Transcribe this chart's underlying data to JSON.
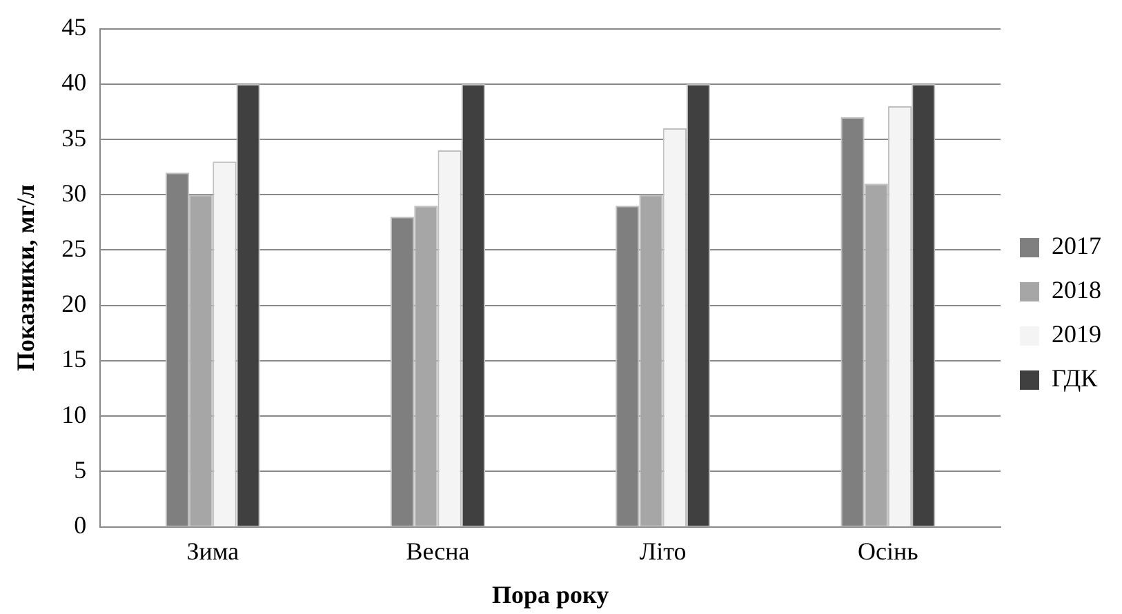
{
  "chart_data": {
    "type": "bar",
    "xlabel": "Пора року",
    "ylabel": "Показники, мг/л",
    "categories": [
      "Зима",
      "Весна",
      "Літо",
      "Осінь"
    ],
    "series": [
      {
        "name": "2017",
        "color": "#7f7f7f",
        "values": [
          32,
          28,
          29,
          37
        ]
      },
      {
        "name": "2018",
        "color": "#a6a6a6",
        "values": [
          30,
          29,
          30,
          31
        ]
      },
      {
        "name": "2019",
        "color": "#f4f4f4",
        "values": [
          33,
          34,
          36,
          38
        ]
      },
      {
        "name": "ГДК",
        "color": "#404040",
        "values": [
          40,
          40,
          40,
          40
        ]
      }
    ],
    "ylim": [
      0,
      45
    ],
    "yticks": [
      0,
      5,
      10,
      15,
      20,
      25,
      30,
      35,
      40,
      45
    ],
    "grid": "y",
    "legend": "right"
  }
}
